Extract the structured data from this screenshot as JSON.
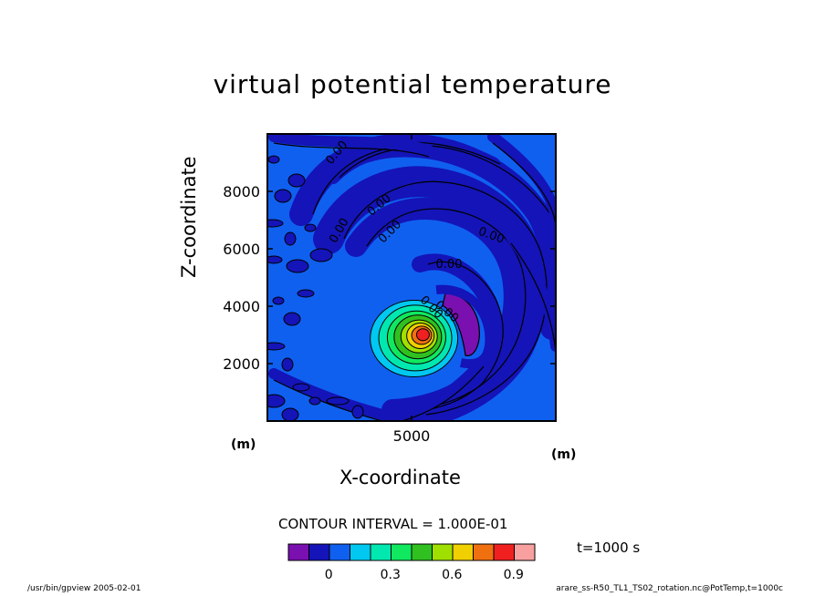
{
  "chart_data": {
    "type": "heatmap",
    "title": "virtual potential temperature",
    "xlabel": "X-coordinate",
    "ylabel": "Z-coordinate",
    "x_unit": "(m)",
    "y_unit": "(m)",
    "xlim": [
      0,
      10000
    ],
    "ylim": [
      0,
      10000
    ],
    "x_ticks": [
      5000
    ],
    "y_ticks": [
      2000,
      4000,
      6000,
      8000
    ],
    "contour_labels": [
      "0.00",
      "0.00",
      "0.00",
      "0.00",
      "0.00",
      "0.00",
      "0.00",
      "0.00"
    ],
    "contour_interval_text": "CONTOUR INTERVAL = 1.000E-01",
    "time_text": "t=1000 s",
    "colorbar": {
      "colors": [
        "#7a10b0",
        "#1414b8",
        "#1060f0",
        "#00c8f0",
        "#00e8b0",
        "#10e860",
        "#30c020",
        "#a0e000",
        "#f0d000",
        "#f07010",
        "#f02020",
        "#f8a0a0"
      ],
      "tick_labels": [
        "0",
        "0.3",
        "0.6",
        "0.9"
      ],
      "tick_values": [
        0,
        0.3,
        0.6,
        0.9
      ],
      "boundaries": [
        -0.2,
        -0.1,
        0,
        0.1,
        0.2,
        0.3,
        0.4,
        0.5,
        0.6,
        0.7,
        0.8,
        0.9,
        1.0
      ]
    },
    "features": {
      "warm_bubble_center": [
        5400,
        3000
      ],
      "max_value_approx": 0.85,
      "cold_arc_min_value": -0.15
    }
  },
  "footer": {
    "left": "/usr/bin/gpview  2005-02-01",
    "right": "arare_ss-R50_TL1_TS02_rotation.nc@PotTemp,t=1000c"
  }
}
